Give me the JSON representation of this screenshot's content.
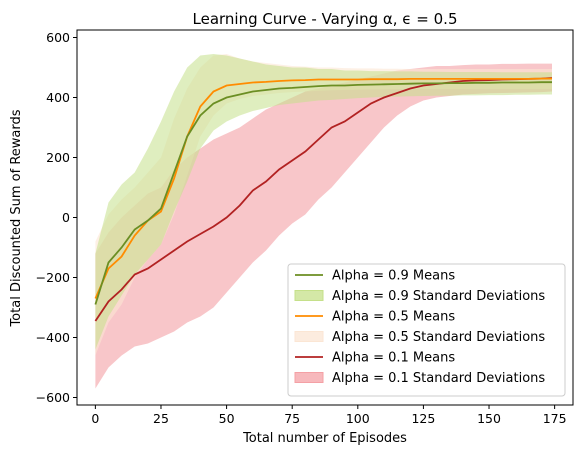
{
  "chart_data": {
    "type": "line",
    "title": "Learning Curve - Varying α, ϵ = 0.5",
    "xlabel": "Total number of Episodes",
    "ylabel": "Total Discounted Sum of Rewards",
    "xlim": [
      -7,
      182
    ],
    "ylim": [
      -625,
      625
    ],
    "xticks": [
      0,
      25,
      50,
      75,
      100,
      125,
      150,
      175
    ],
    "yticks": [
      -600,
      -400,
      -200,
      0,
      200,
      400,
      600
    ],
    "grid": false,
    "legend_position": "lower-right",
    "x": [
      0,
      5,
      10,
      15,
      20,
      25,
      30,
      35,
      40,
      45,
      50,
      55,
      60,
      65,
      70,
      75,
      80,
      85,
      90,
      95,
      100,
      105,
      110,
      115,
      120,
      125,
      130,
      135,
      140,
      145,
      150,
      155,
      160,
      165,
      170,
      174
    ],
    "series": [
      {
        "name": "Alpha = 0.9 Means",
        "band_name": "Alpha = 0.9 Standard Deviations",
        "color": "#6b8e23",
        "band_color": "#c5e08a",
        "mean": [
          -290,
          -150,
          -100,
          -40,
          -10,
          30,
          150,
          270,
          340,
          380,
          400,
          410,
          420,
          425,
          430,
          432,
          435,
          438,
          440,
          440,
          442,
          443,
          444,
          445,
          446,
          447,
          447,
          448,
          448,
          449,
          449,
          450,
          450,
          450,
          451,
          451
        ],
        "lower": [
          -440,
          -330,
          -260,
          -190,
          -140,
          -90,
          20,
          120,
          230,
          290,
          320,
          340,
          355,
          365,
          375,
          380,
          385,
          390,
          392,
          395,
          398,
          400,
          402,
          403,
          404,
          405,
          406,
          406,
          407,
          407,
          408,
          408,
          409,
          409,
          410,
          410
        ],
        "upper": [
          -120,
          50,
          110,
          150,
          230,
          320,
          420,
          500,
          540,
          545,
          540,
          530,
          520,
          510,
          505,
          500,
          500,
          495,
          495,
          490,
          490,
          488,
          488,
          487,
          487,
          486,
          486,
          485,
          485,
          485,
          485,
          484,
          484,
          484,
          484,
          484
        ]
      },
      {
        "name": "Alpha = 0.5 Means",
        "band_name": "Alpha = 0.5 Standard Deviations",
        "color": "#ff8c00",
        "band_color": "#fbe6d4",
        "mean": [
          -270,
          -170,
          -130,
          -60,
          -10,
          20,
          130,
          270,
          370,
          420,
          440,
          445,
          450,
          452,
          455,
          457,
          458,
          460,
          460,
          460,
          460,
          461,
          461,
          461,
          462,
          462,
          462,
          462,
          462,
          462,
          462,
          462,
          462,
          462,
          463,
          463
        ],
        "lower": [
          -460,
          -350,
          -290,
          -200,
          -140,
          -90,
          10,
          140,
          270,
          340,
          380,
          395,
          405,
          410,
          415,
          418,
          420,
          422,
          424,
          425,
          426,
          427,
          427,
          428,
          428,
          428,
          428,
          428,
          428,
          428,
          428,
          428,
          428,
          428,
          428,
          428
        ],
        "upper": [
          -80,
          10,
          60,
          100,
          150,
          200,
          330,
          430,
          500,
          540,
          545,
          530,
          520,
          515,
          510,
          505,
          503,
          500,
          500,
          498,
          497,
          497,
          496,
          496,
          495,
          495,
          495,
          495,
          495,
          495,
          495,
          495,
          495,
          495,
          495,
          495
        ]
      },
      {
        "name": "Alpha = 0.1 Means",
        "band_name": "Alpha = 0.1 Standard Deviations",
        "color": "#b22222",
        "band_color": "#f4a0a5",
        "mean": [
          -345,
          -280,
          -240,
          -190,
          -170,
          -140,
          -110,
          -80,
          -55,
          -30,
          0,
          40,
          90,
          120,
          160,
          190,
          220,
          260,
          300,
          320,
          350,
          380,
          400,
          415,
          430,
          440,
          445,
          450,
          455,
          457,
          458,
          460,
          461,
          462,
          463,
          465
        ],
        "lower": [
          -570,
          -500,
          -460,
          -430,
          -420,
          -400,
          -380,
          -350,
          -330,
          -300,
          -250,
          -200,
          -150,
          -110,
          -60,
          -20,
          10,
          60,
          100,
          150,
          200,
          250,
          300,
          340,
          370,
          390,
          400,
          405,
          410,
          412,
          414,
          415,
          416,
          417,
          418,
          420
        ],
        "upper": [
          -120,
          -50,
          0,
          40,
          80,
          100,
          160,
          200,
          230,
          260,
          280,
          300,
          330,
          360,
          380,
          400,
          420,
          430,
          440,
          450,
          460,
          470,
          480,
          490,
          495,
          500,
          505,
          505,
          508,
          510,
          510,
          512,
          512,
          513,
          513,
          513
        ]
      }
    ]
  }
}
